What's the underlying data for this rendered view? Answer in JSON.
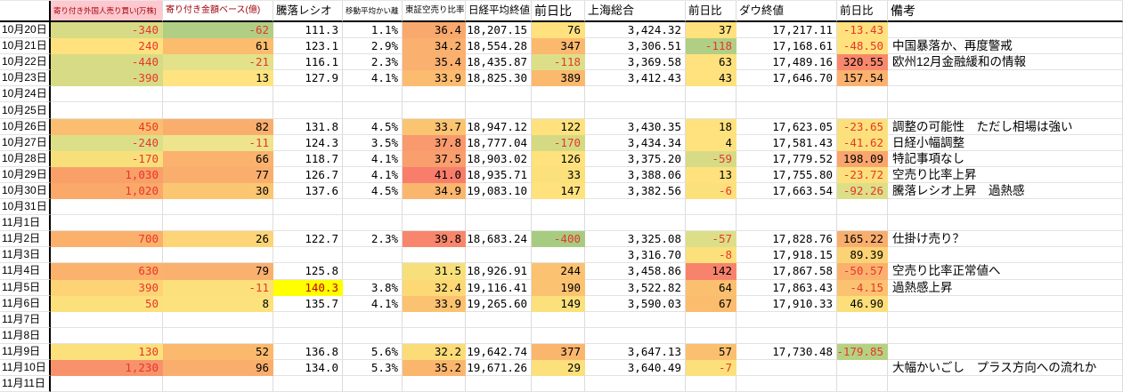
{
  "palette": {
    "negative_text": "#e8362a",
    "highlight_text": "#c00000",
    "highlight_cell_bg": "#ffff00",
    "header_warn_bg": "#ffc7ce",
    "header_warn_fg": "#9c0006",
    "grid_line": "#dcdcdc",
    "strong_border": "#000000"
  },
  "sheet": {
    "columns": [
      {
        "id": "date",
        "label": ""
      },
      {
        "id": "foreign-open-trades",
        "label": "寄り付き外国人売り買い[万株]"
      },
      {
        "id": "open-amount-base",
        "label": "寄り付き金額ベース(億)"
      },
      {
        "id": "advance-decline-ratio",
        "label": "騰落レシオ"
      },
      {
        "id": "moving-average-deviation",
        "label": "移動平均かい離"
      },
      {
        "id": "tse-short-selling-ratio",
        "label": "東証空売り比率"
      },
      {
        "id": "nikkei-close",
        "label": "日経平均終値"
      },
      {
        "id": "nikkei-change",
        "label": "前日比"
      },
      {
        "id": "shanghai-composite",
        "label": "上海総合"
      },
      {
        "id": "shanghai-change",
        "label": "前日比"
      },
      {
        "id": "dow-close",
        "label": "ダウ終値"
      },
      {
        "id": "dow-change",
        "label": "前日比"
      },
      {
        "id": "remarks",
        "label": "備考"
      }
    ],
    "rows": [
      {
        "date": "10月20日",
        "cells": [
          {
            "t": "-340",
            "bg": "#d7db85",
            "red": true
          },
          {
            "t": "-62",
            "bg": "#b1cf84",
            "red": true
          },
          {
            "t": "111.3"
          },
          {
            "t": "1.1%"
          },
          {
            "t": "36.4",
            "bg": "#faa96e"
          },
          {
            "t": "18,207.15"
          },
          {
            "t": "76",
            "bg": "#ffe17e"
          },
          {
            "t": "3,424.32"
          },
          {
            "t": "37",
            "bg": "#ffe17e"
          },
          {
            "t": "17,217.11"
          },
          {
            "t": "-13.43",
            "bg": "#ffe17e",
            "red": true
          },
          null
        ]
      },
      {
        "date": "10月21日",
        "cells": [
          {
            "t": "240",
            "bg": "#ffe17e",
            "red": true
          },
          {
            "t": "61",
            "bg": "#fbbc6e"
          },
          {
            "t": "123.1"
          },
          {
            "t": "2.9%"
          },
          {
            "t": "34.2",
            "bg": "#fab06e"
          },
          {
            "t": "18,554.28"
          },
          {
            "t": "347",
            "bg": "#fbb96e"
          },
          {
            "t": "3,306.51"
          },
          {
            "t": "-118",
            "bg": "#b1cf84",
            "red": true
          },
          {
            "t": "17,168.61"
          },
          {
            "t": "-48.50",
            "bg": "#ffe17e",
            "red": true
          },
          {
            "t": "中国暴落か、再度警戒"
          }
        ]
      },
      {
        "date": "10月22日",
        "cells": [
          {
            "t": "-440",
            "bg": "#d7db85",
            "red": true
          },
          {
            "t": "-21",
            "bg": "#e3e18a",
            "red": true
          },
          {
            "t": "116.1"
          },
          {
            "t": "2.3%"
          },
          {
            "t": "35.4",
            "bg": "#fab06e"
          },
          {
            "t": "18,435.87"
          },
          {
            "t": "-118",
            "bg": "#dcdf88",
            "red": true
          },
          {
            "t": "3,369.58"
          },
          {
            "t": "63",
            "bg": "#ffe17e"
          },
          {
            "t": "17,489.16"
          },
          {
            "t": "320.55",
            "bg": "#f8886c"
          },
          {
            "t": "欧州12月金融緩和の情報"
          }
        ]
      },
      {
        "date": "10月23日",
        "cells": [
          {
            "t": "-390",
            "bg": "#d7db85",
            "red": true
          },
          {
            "t": "13",
            "bg": "#ffe381"
          },
          {
            "t": "127.9"
          },
          {
            "t": "4.1%"
          },
          {
            "t": "33.9",
            "bg": "#fbbc70"
          },
          {
            "t": "18,825.30"
          },
          {
            "t": "389",
            "bg": "#fbb96e"
          },
          {
            "t": "3,412.43"
          },
          {
            "t": "43",
            "bg": "#ffe17e"
          },
          {
            "t": "17,646.70"
          },
          {
            "t": "157.54",
            "bg": "#fbb26e"
          },
          null
        ]
      },
      {
        "date": "10月24日",
        "cells": [
          null,
          null,
          null,
          null,
          null,
          null,
          null,
          null,
          null,
          null,
          null,
          null
        ]
      },
      {
        "date": "10月25日",
        "cells": [
          null,
          null,
          null,
          null,
          null,
          null,
          null,
          null,
          null,
          null,
          null,
          null
        ]
      },
      {
        "date": "10月26日",
        "cells": [
          {
            "t": "450",
            "bg": "#fbbe71",
            "red": true
          },
          {
            "t": "82",
            "bg": "#faae6d"
          },
          {
            "t": "131.8"
          },
          {
            "t": "4.5%"
          },
          {
            "t": "33.7",
            "bg": "#fbc471"
          },
          {
            "t": "18,947.12"
          },
          {
            "t": "122",
            "bg": "#ffe17e"
          },
          {
            "t": "3,430.35"
          },
          {
            "t": "18",
            "bg": "#ffe17e"
          },
          {
            "t": "17,623.05"
          },
          {
            "t": "-23.65",
            "bg": "#fce07c",
            "red": true
          },
          {
            "t": "調整の可能性　ただし相場は強い"
          }
        ]
      },
      {
        "date": "10月27日",
        "cells": [
          {
            "t": "-240",
            "bg": "#dcdf88",
            "red": true
          },
          {
            "t": "-11",
            "bg": "#eee48d",
            "red": true
          },
          {
            "t": "124.3"
          },
          {
            "t": "3.5%"
          },
          {
            "t": "37.8",
            "bg": "#f89a6d"
          },
          {
            "t": "18,777.04"
          },
          {
            "t": "-170",
            "bg": "#d4da83",
            "red": true
          },
          {
            "t": "3,434.34"
          },
          {
            "t": "4",
            "bg": "#ffe17e"
          },
          {
            "t": "17,581.43"
          },
          {
            "t": "-41.62",
            "bg": "#fce07c",
            "red": true
          },
          {
            "t": "日経小幅調整"
          }
        ]
      },
      {
        "date": "10月28日",
        "cells": [
          {
            "t": "-170",
            "bg": "#f7e07c",
            "red": true
          },
          {
            "t": "66",
            "bg": "#fab26e"
          },
          {
            "t": "118.7"
          },
          {
            "t": "4.1%"
          },
          {
            "t": "37.5",
            "bg": "#f99e6d"
          },
          {
            "t": "18,903.02"
          },
          {
            "t": "126",
            "bg": "#ffe17e"
          },
          {
            "t": "3,375.20"
          },
          {
            "t": "-59",
            "bg": "#d7db85",
            "red": true
          },
          {
            "t": "17,779.52"
          },
          {
            "t": "198.09",
            "bg": "#faa56e"
          },
          {
            "t": "特記事項なし"
          }
        ]
      },
      {
        "date": "10月29日",
        "cells": [
          {
            "t": "1,030",
            "bg": "#f8a067",
            "red": true
          },
          {
            "t": "77",
            "bg": "#faae6d"
          },
          {
            "t": "126.7"
          },
          {
            "t": "4.1%"
          },
          {
            "t": "41.0",
            "bg": "#f87e6b"
          },
          {
            "t": "18,935.71"
          },
          {
            "t": "33",
            "bg": "#fce07c"
          },
          {
            "t": "3,388.06"
          },
          {
            "t": "13",
            "bg": "#ffe17e"
          },
          {
            "t": "17,755.80"
          },
          {
            "t": "-23.72",
            "bg": "#fce07c",
            "red": true
          },
          {
            "t": "空売り比率上昇"
          }
        ]
      },
      {
        "date": "10月30日",
        "cells": [
          {
            "t": "1,020",
            "bg": "#faa96a",
            "red": true
          },
          {
            "t": "30",
            "bg": "#fbc671"
          },
          {
            "t": "137.6"
          },
          {
            "t": "4.5%"
          },
          {
            "t": "34.9",
            "bg": "#fbb66e"
          },
          {
            "t": "19,083.10"
          },
          {
            "t": "147",
            "bg": "#ffe17e"
          },
          {
            "t": "3,382.56"
          },
          {
            "t": "-6",
            "bg": "#fce07c",
            "red": true
          },
          {
            "t": "17,663.54"
          },
          {
            "t": "-92.26",
            "bg": "#dcdf88",
            "red": true
          },
          {
            "t": "騰落レシオ上昇　過熱感"
          }
        ]
      },
      {
        "date": "10月31日",
        "cells": [
          null,
          null,
          null,
          null,
          null,
          null,
          null,
          null,
          null,
          null,
          null,
          null
        ]
      },
      {
        "date": "11月1日",
        "cells": [
          null,
          null,
          null,
          null,
          null,
          null,
          null,
          null,
          null,
          null,
          null,
          null
        ]
      },
      {
        "date": "11月2日",
        "cells": [
          {
            "t": "700",
            "bg": "#fbb06c",
            "red": true
          },
          {
            "t": "26",
            "bg": "#fdd477"
          },
          {
            "t": "122.7"
          },
          {
            "t": "2.3%"
          },
          {
            "t": "39.8",
            "bg": "#f8866c"
          },
          {
            "t": "18,683.24"
          },
          {
            "t": "-400",
            "bg": "#a8cb82",
            "red": true
          },
          {
            "t": "3,325.08"
          },
          {
            "t": "-57",
            "bg": "#dcdf88",
            "red": true
          },
          {
            "t": "17,828.76"
          },
          {
            "t": "165.22",
            "bg": "#faae6e"
          },
          {
            "t": "仕掛け売り？"
          }
        ]
      },
      {
        "date": "11月3日",
        "cells": [
          null,
          null,
          null,
          null,
          null,
          null,
          null,
          {
            "t": "3,316.70"
          },
          {
            "t": "-8",
            "bg": "#fce07c",
            "red": true
          },
          {
            "t": "17,918.15"
          },
          {
            "t": "89.39",
            "bg": "#fbd375"
          },
          null
        ]
      },
      {
        "date": "11月4日",
        "cells": [
          {
            "t": "630",
            "bg": "#fbb26c",
            "red": true
          },
          {
            "t": "79",
            "bg": "#fab06e"
          },
          {
            "t": "125.8"
          },
          null,
          {
            "t": "31.5",
            "bg": "#f7e07c"
          },
          {
            "t": "18,926.91"
          },
          {
            "t": "244",
            "bg": "#fbc271"
          },
          {
            "t": "3,458.86"
          },
          {
            "t": "142",
            "bg": "#f8836c"
          },
          {
            "t": "17,867.58"
          },
          {
            "t": "-50.57",
            "bg": "#fbb16e",
            "red": true
          },
          {
            "t": "空売り比率正常値へ"
          }
        ]
      },
      {
        "date": "11月5日",
        "cells": [
          {
            "t": "390",
            "bg": "#fdd376",
            "red": true
          },
          {
            "t": "-11",
            "bg": "#fbe07b",
            "red": true
          },
          {
            "t": "140.3",
            "bg": "#ffff00",
            "fg": "#c00000"
          },
          {
            "t": "3.8%"
          },
          {
            "t": "32.4",
            "bg": "#fdd976"
          },
          {
            "t": "19,116.41"
          },
          {
            "t": "190",
            "bg": "#fbc271"
          },
          {
            "t": "3,522.82"
          },
          {
            "t": "64",
            "bg": "#fbc06f"
          },
          {
            "t": "17,863.43"
          },
          {
            "t": "-4.15",
            "bg": "#fbc271",
            "red": true
          },
          {
            "t": "過熱感上昇"
          }
        ]
      },
      {
        "date": "11月6日",
        "cells": [
          {
            "t": "50",
            "bg": "#fce07c",
            "red": true
          },
          {
            "t": "8",
            "bg": "#fce17c"
          },
          {
            "t": "135.7"
          },
          {
            "t": "4.1%"
          },
          {
            "t": "33.9",
            "bg": "#fbc271"
          },
          {
            "t": "19,265.60"
          },
          {
            "t": "149",
            "bg": "#fce07c"
          },
          {
            "t": "3,590.03"
          },
          {
            "t": "67",
            "bg": "#fbbc6e"
          },
          {
            "t": "17,910.33"
          },
          {
            "t": "46.90",
            "bg": "#fcdf7a"
          },
          null
        ]
      },
      {
        "date": "11月7日",
        "cells": [
          null,
          null,
          null,
          null,
          null,
          null,
          null,
          null,
          null,
          null,
          null,
          null
        ]
      },
      {
        "date": "11月8日",
        "cells": [
          null,
          null,
          null,
          null,
          null,
          null,
          null,
          null,
          null,
          null,
          null,
          null
        ]
      },
      {
        "date": "11月9日",
        "cells": [
          {
            "t": "130",
            "bg": "#fce07c",
            "red": true
          },
          {
            "t": "52",
            "bg": "#fbb96e"
          },
          {
            "t": "136.8"
          },
          {
            "t": "5.6%"
          },
          {
            "t": "32.2",
            "bg": "#fcdc79"
          },
          {
            "t": "19,642.74"
          },
          {
            "t": "377",
            "bg": "#fbb66e"
          },
          {
            "t": "3,647.13"
          },
          {
            "t": "57",
            "bg": "#fbc06f"
          },
          {
            "t": "17,730.48"
          },
          {
            "t": "-179.85",
            "bg": "#b5d282",
            "red": true
          },
          null
        ]
      },
      {
        "date": "11月10日",
        "cells": [
          {
            "t": "1,230",
            "bg": "#f8926c",
            "red": true
          },
          {
            "t": "96",
            "bg": "#faae6d"
          },
          {
            "t": "134.0"
          },
          {
            "t": "5.3%"
          },
          {
            "t": "35.2",
            "bg": "#fbb66e"
          },
          {
            "t": "19,671.26"
          },
          {
            "t": "29",
            "bg": "#fce07c"
          },
          {
            "t": "3,640.49"
          },
          {
            "t": "-7",
            "bg": "#fce07c",
            "red": true
          },
          null,
          null,
          {
            "t": "大幅かいごし　プラス方向への流れか"
          }
        ]
      },
      {
        "date": "11月11日",
        "cells": [
          null,
          null,
          null,
          null,
          null,
          null,
          null,
          null,
          null,
          null,
          null,
          null
        ]
      }
    ]
  }
}
